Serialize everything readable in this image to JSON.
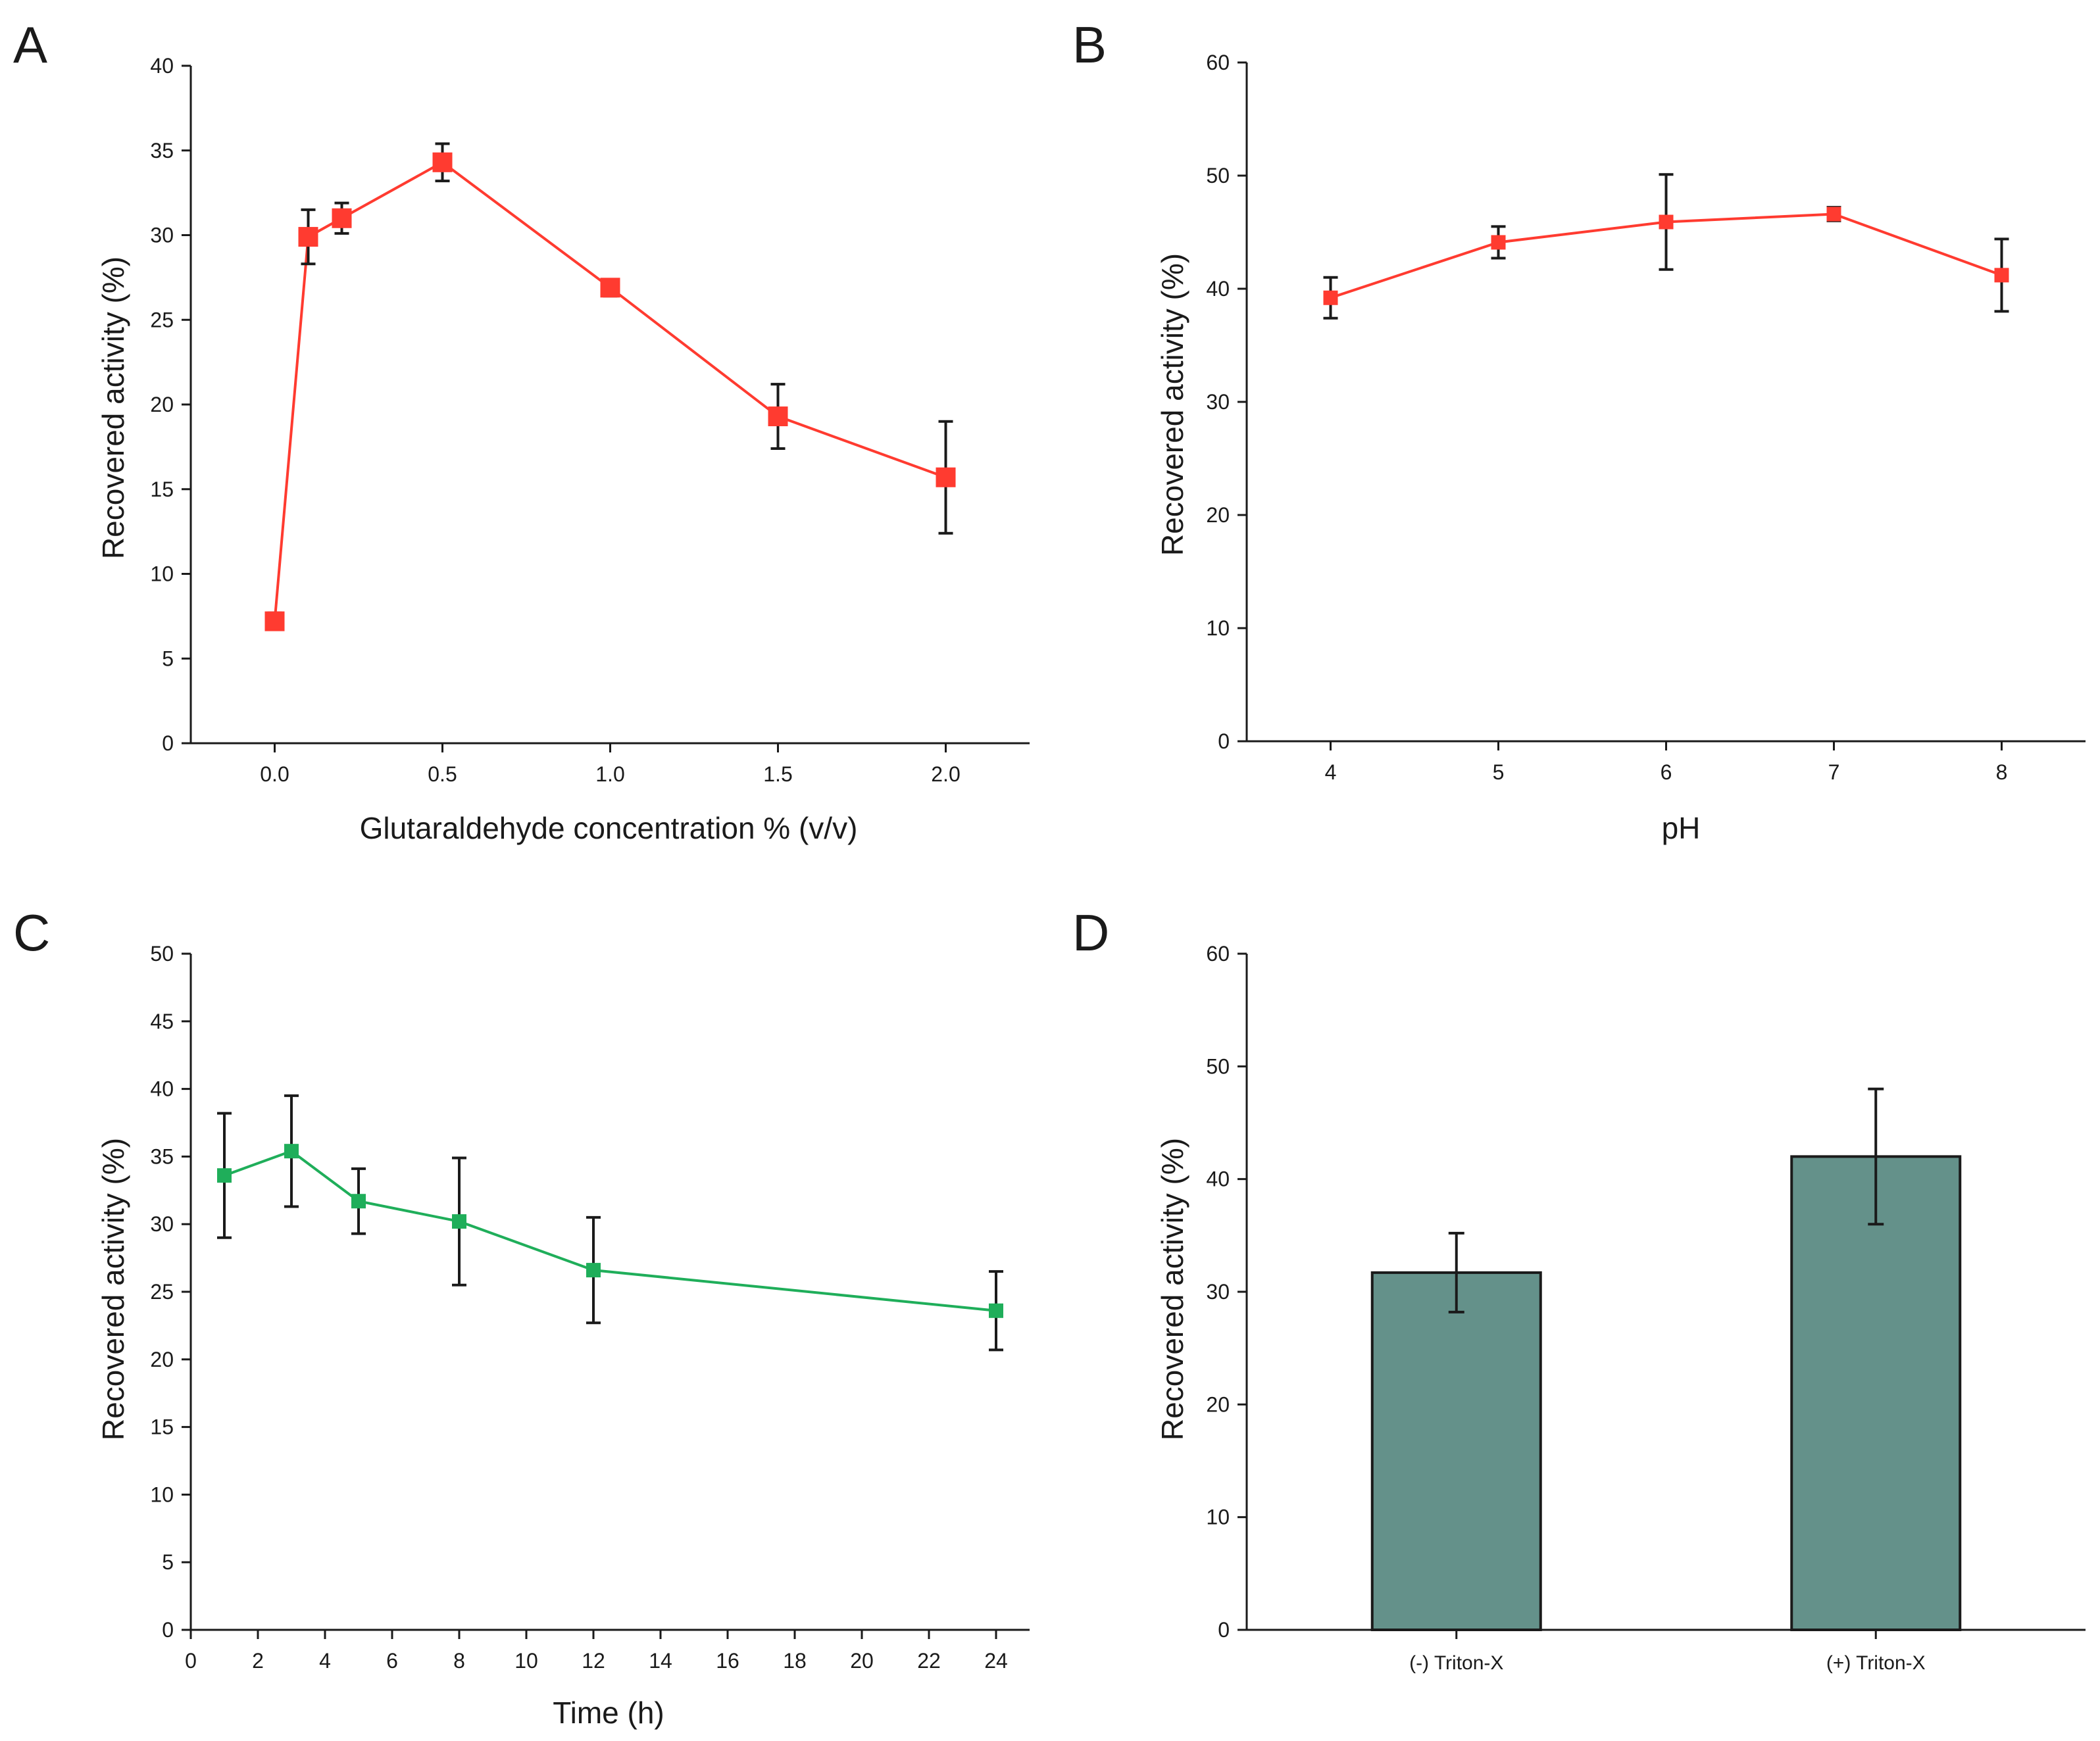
{
  "chart_data": [
    {
      "id": "A",
      "panel_label": "A",
      "type": "line",
      "xlabel": "Glutaraldehyde concentration % (v/v)",
      "ylabel": "Recovered activity (%)",
      "xlim": [
        -0.25,
        2.25
      ],
      "ylim": [
        0,
        40
      ],
      "xticks": [
        0.0,
        0.5,
        1.0,
        1.5,
        2.0
      ],
      "xtick_labels": [
        "0.0",
        "0.5",
        "1.0",
        "1.5",
        "2.0"
      ],
      "yticks": [
        0,
        5,
        10,
        15,
        20,
        25,
        30,
        35,
        40
      ],
      "ytick_labels": [
        "0",
        "5",
        "10",
        "15",
        "20",
        "25",
        "30",
        "35",
        "40"
      ],
      "series": [
        {
          "name": "Recovered activity",
          "color": "#ff3b30",
          "marker": "square",
          "x": [
            0.0,
            0.1,
            0.2,
            0.5,
            1.0,
            1.5,
            2.0
          ],
          "y": [
            7.2,
            29.9,
            31.0,
            34.3,
            26.9,
            19.3,
            15.7
          ],
          "err": [
            0.5,
            1.6,
            0.9,
            1.1,
            0.5,
            1.9,
            3.3
          ]
        }
      ],
      "grid": false
    },
    {
      "id": "B",
      "panel_label": "B",
      "type": "line",
      "xlabel": "pH",
      "ylabel": "Recovered activity (%)",
      "xlim": [
        3.5,
        8.5
      ],
      "ylim": [
        0,
        60
      ],
      "xticks": [
        4,
        5,
        6,
        7,
        8
      ],
      "xtick_labels": [
        "4",
        "5",
        "6",
        "7",
        "8"
      ],
      "yticks": [
        0,
        10,
        20,
        30,
        40,
        50,
        60
      ],
      "ytick_labels": [
        "0",
        "10",
        "20",
        "30",
        "40",
        "50",
        "60"
      ],
      "series": [
        {
          "name": "Recovered activity",
          "color": "#ff3b30",
          "marker": "square",
          "x": [
            4,
            5,
            6,
            7,
            8
          ],
          "y": [
            39.2,
            44.1,
            45.9,
            46.6,
            41.2
          ],
          "err": [
            1.8,
            1.4,
            4.2,
            0.6,
            3.2
          ]
        }
      ],
      "grid": false
    },
    {
      "id": "C",
      "panel_label": "C",
      "type": "line",
      "xlabel": "Time (h)",
      "ylabel": "Recovered activity (%)",
      "xlim": [
        0,
        25
      ],
      "ylim": [
        0,
        50
      ],
      "xticks": [
        0,
        2,
        4,
        6,
        8,
        10,
        12,
        14,
        16,
        18,
        20,
        22,
        24
      ],
      "xtick_labels": [
        "0",
        "2",
        "4",
        "6",
        "8",
        "10",
        "12",
        "14",
        "16",
        "18",
        "20",
        "22",
        "24"
      ],
      "yticks": [
        0,
        5,
        10,
        15,
        20,
        25,
        30,
        35,
        40,
        45,
        50
      ],
      "ytick_labels": [
        "0",
        "5",
        "10",
        "15",
        "20",
        "25",
        "30",
        "35",
        "40",
        "45",
        "50"
      ],
      "series": [
        {
          "name": "Recovered activity",
          "color": "#1fae5a",
          "marker": "square",
          "x": [
            1,
            3,
            5,
            8,
            12,
            24
          ],
          "y": [
            33.6,
            35.4,
            31.7,
            30.2,
            26.6,
            23.6
          ],
          "err": [
            4.6,
            4.1,
            2.4,
            4.7,
            3.9,
            2.9
          ]
        }
      ],
      "grid": false
    },
    {
      "id": "D",
      "panel_label": "D",
      "type": "bar",
      "xlabel": "",
      "ylabel": "Recovered activity (%)",
      "ylim": [
        0,
        60
      ],
      "categories": [
        "(-) Triton-X",
        "(+) Triton-X"
      ],
      "values": [
        31.7,
        42.0
      ],
      "err": [
        3.5,
        6.0
      ],
      "bar_color": "#64918a",
      "yticks": [
        0,
        10,
        20,
        30,
        40,
        50,
        60
      ],
      "ytick_labels": [
        "0",
        "10",
        "20",
        "30",
        "40",
        "50",
        "60"
      ],
      "grid": false
    }
  ]
}
